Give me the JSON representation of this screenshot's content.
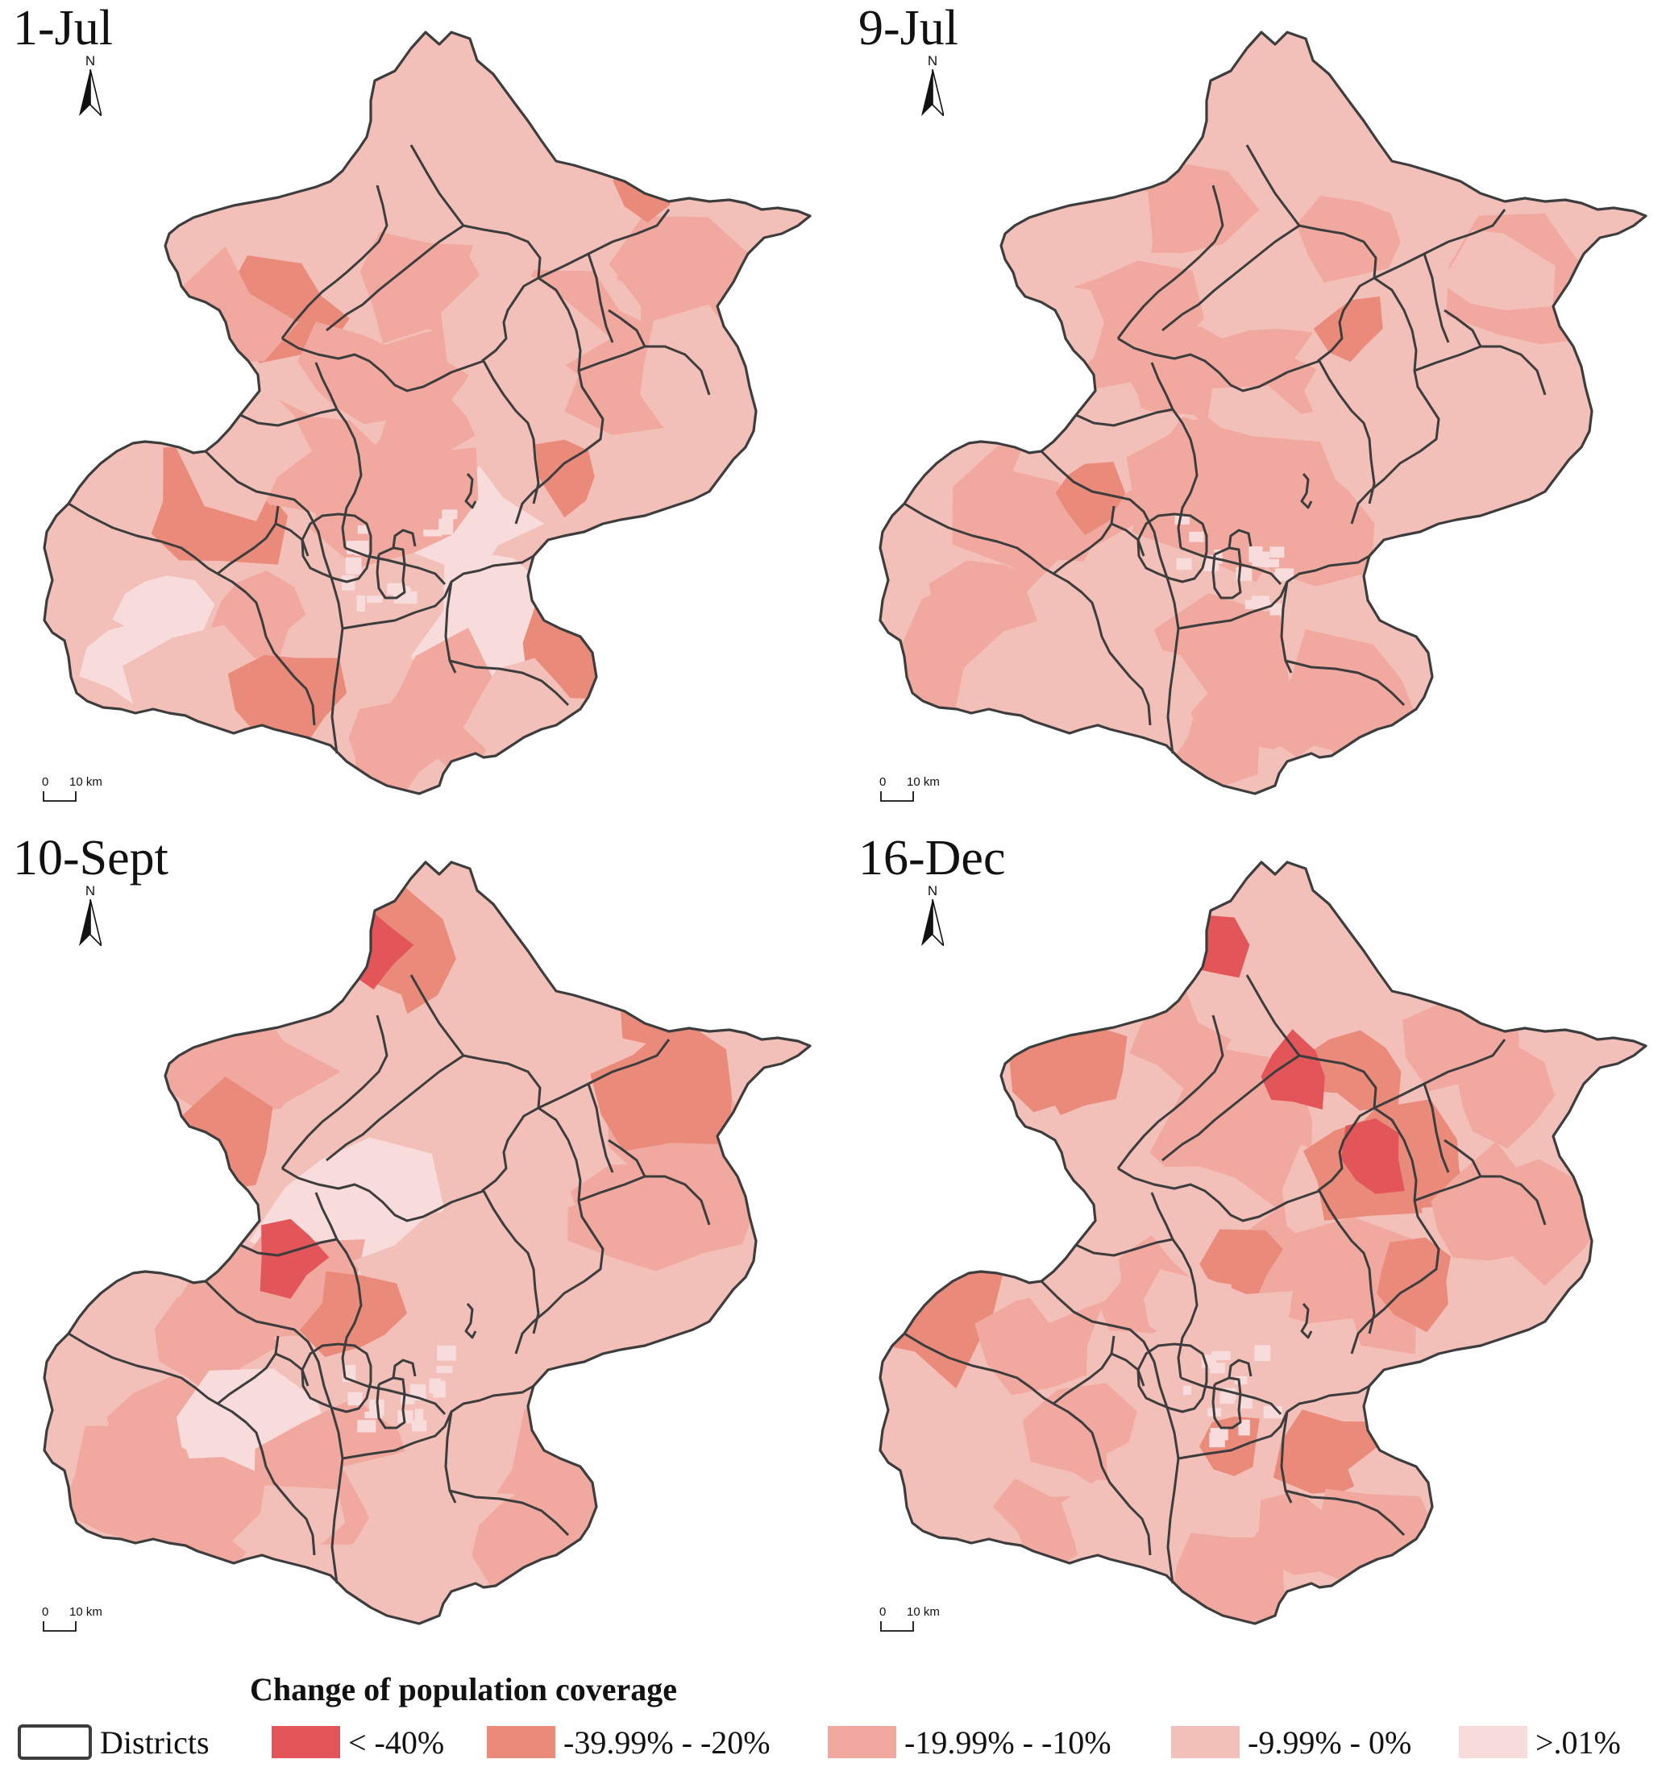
{
  "panels": [
    {
      "title": "1-Jul",
      "north": "N",
      "scale_zero": "0",
      "scale_dist": "10 km",
      "ramp": [
        0.55,
        0.45,
        0.35,
        0.75,
        0.6,
        0.5,
        0.4,
        0.55,
        0.65,
        0.45,
        0.35,
        0.6
      ],
      "hotspots": [
        [
          0.78,
          0.22,
          0.6
        ],
        [
          0.68,
          0.58,
          0.4
        ]
      ]
    },
    {
      "title": "9-Jul",
      "north": "N",
      "scale_zero": "0",
      "scale_dist": "10 km",
      "ramp": [
        0.45,
        0.55,
        0.45,
        0.65,
        0.5,
        0.55,
        0.45,
        0.5,
        0.55,
        0.55,
        0.45,
        0.5
      ],
      "hotspots": [
        [
          0.62,
          0.4,
          0.5
        ],
        [
          0.3,
          0.6,
          0.4
        ]
      ]
    },
    {
      "title": "10-Sept",
      "north": "N",
      "scale_zero": "0",
      "scale_dist": "10 km",
      "ramp": [
        0.7,
        0.45,
        0.5,
        0.65,
        0.45,
        0.5,
        0.45,
        0.55,
        0.55,
        0.45,
        0.5,
        0.4
      ],
      "hotspots": [
        [
          0.45,
          0.14,
          0.9
        ],
        [
          0.78,
          0.22,
          0.7
        ],
        [
          0.35,
          0.52,
          0.8
        ]
      ]
    },
    {
      "title": "16-Dec",
      "north": "N",
      "scale_zero": "0",
      "scale_dist": "10 km",
      "ramp": [
        0.45,
        0.6,
        0.75,
        0.6,
        0.7,
        0.8,
        0.55,
        0.65,
        0.5,
        0.6,
        0.55,
        0.65
      ],
      "hotspots": [
        [
          0.45,
          0.14,
          0.9
        ],
        [
          0.2,
          0.4,
          0.9
        ],
        [
          0.65,
          0.4,
          0.8
        ],
        [
          0.55,
          0.3,
          0.8
        ],
        [
          0.48,
          0.75,
          0.7
        ]
      ]
    }
  ],
  "legend": {
    "title": "Change of population coverage",
    "districts_label": "Districts",
    "classes": [
      {
        "label": "< -40%",
        "color": "#e25559"
      },
      {
        "label": "-39.99% - -20%",
        "color": "#ea8a7a"
      },
      {
        "label": "-19.99% - -10%",
        "color": "#f0a89f"
      },
      {
        "label": "-9.99% - 0%",
        "color": "#f3c0b9"
      },
      {
        "label": ">.01%",
        "color": "#f8dcdc"
      }
    ]
  },
  "colors": {
    "boundary": "#3d3d3d"
  }
}
